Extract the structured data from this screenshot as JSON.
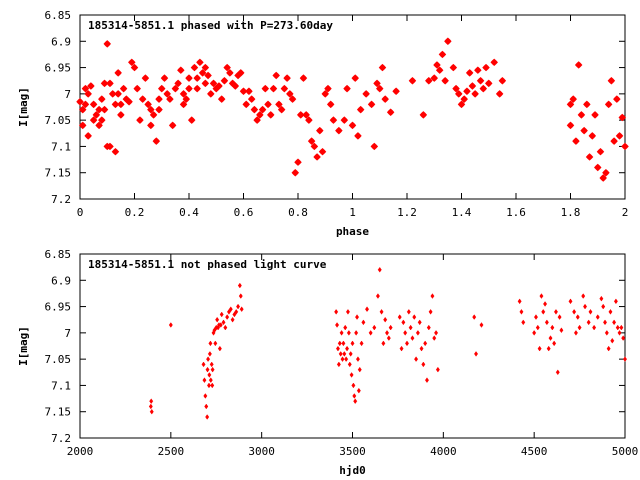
{
  "chart_data": [
    {
      "type": "scatter",
      "title": "185314-5851.1 phased with P=273.60day",
      "xlabel": "phase",
      "ylabel": "I[mag]",
      "xlim": [
        0,
        2
      ],
      "ylim": [
        7.2,
        6.85
      ],
      "y_inverted": true,
      "grid": false,
      "marker": "star",
      "color": "#ff0000",
      "xticks": [
        0,
        0.2,
        0.4,
        0.6,
        0.8,
        1,
        1.2,
        1.4,
        1.6,
        1.8,
        2
      ],
      "xtick_labels": [
        "0",
        "0.2",
        "0.4",
        "0.6",
        "0.8",
        "1",
        "1.2",
        "1.4",
        "1.6",
        "1.8",
        "2"
      ],
      "yticks": [
        6.85,
        6.9,
        6.95,
        7,
        7.05,
        7.1,
        7.15,
        7.2
      ],
      "ytick_labels": [
        "6.85",
        "6.9",
        "6.95",
        "7",
        "7.05",
        "7.1",
        "7.15",
        "7.2"
      ],
      "points": [
        [
          0.0,
          7.015
        ],
        [
          0.01,
          7.03
        ],
        [
          0.01,
          7.06
        ],
        [
          0.02,
          6.99
        ],
        [
          0.02,
          7.02
        ],
        [
          0.03,
          7.0
        ],
        [
          0.03,
          7.08
        ],
        [
          0.04,
          6.985
        ],
        [
          0.05,
          7.02
        ],
        [
          0.05,
          7.05
        ],
        [
          0.06,
          7.04
        ],
        [
          0.07,
          7.03
        ],
        [
          0.07,
          7.06
        ],
        [
          0.08,
          7.01
        ],
        [
          0.08,
          7.05
        ],
        [
          0.09,
          6.98
        ],
        [
          0.09,
          7.03
        ],
        [
          0.1,
          6.905
        ],
        [
          0.1,
          7.1
        ],
        [
          0.11,
          7.1
        ],
        [
          0.11,
          6.98
        ],
        [
          0.12,
          7.0
        ],
        [
          0.13,
          7.02
        ],
        [
          0.13,
          7.11
        ],
        [
          0.14,
          6.96
        ],
        [
          0.14,
          7.0
        ],
        [
          0.15,
          7.04
        ],
        [
          0.15,
          7.02
        ],
        [
          0.16,
          6.99
        ],
        [
          0.17,
          7.01
        ],
        [
          0.18,
          7.015
        ],
        [
          0.19,
          6.94
        ],
        [
          0.2,
          6.95
        ],
        [
          0.21,
          6.99
        ],
        [
          0.22,
          7.05
        ],
        [
          0.23,
          7.01
        ],
        [
          0.24,
          6.97
        ],
        [
          0.25,
          7.02
        ],
        [
          0.26,
          7.06
        ],
        [
          0.26,
          7.03
        ],
        [
          0.27,
          7.04
        ],
        [
          0.28,
          7.09
        ],
        [
          0.29,
          7.01
        ],
        [
          0.29,
          7.03
        ],
        [
          0.3,
          6.99
        ],
        [
          0.31,
          6.97
        ],
        [
          0.32,
          7.0
        ],
        [
          0.33,
          7.01
        ],
        [
          0.34,
          7.06
        ],
        [
          0.35,
          6.99
        ],
        [
          0.36,
          6.98
        ],
        [
          0.37,
          6.955
        ],
        [
          0.38,
          7.0
        ],
        [
          0.38,
          7.02
        ],
        [
          0.39,
          7.01
        ],
        [
          0.4,
          6.97
        ],
        [
          0.4,
          6.99
        ],
        [
          0.41,
          7.05
        ],
        [
          0.42,
          6.95
        ],
        [
          0.43,
          6.97
        ],
        [
          0.43,
          6.99
        ],
        [
          0.44,
          6.94
        ],
        [
          0.45,
          6.96
        ],
        [
          0.46,
          6.98
        ],
        [
          0.46,
          6.95
        ],
        [
          0.47,
          6.965
        ],
        [
          0.48,
          7.0
        ],
        [
          0.49,
          6.98
        ],
        [
          0.5,
          6.99
        ],
        [
          0.51,
          6.985
        ],
        [
          0.52,
          7.01
        ],
        [
          0.53,
          6.975
        ],
        [
          0.54,
          6.95
        ],
        [
          0.55,
          6.96
        ],
        [
          0.56,
          6.98
        ],
        [
          0.57,
          6.985
        ],
        [
          0.58,
          6.965
        ],
        [
          0.59,
          6.96
        ],
        [
          0.6,
          6.995
        ],
        [
          0.61,
          7.02
        ],
        [
          0.62,
          6.995
        ],
        [
          0.63,
          7.01
        ],
        [
          0.64,
          7.03
        ],
        [
          0.65,
          7.05
        ],
        [
          0.66,
          7.04
        ],
        [
          0.67,
          7.03
        ],
        [
          0.68,
          6.99
        ],
        [
          0.69,
          7.02
        ],
        [
          0.7,
          7.04
        ],
        [
          0.71,
          6.99
        ],
        [
          0.72,
          6.965
        ],
        [
          0.73,
          7.02
        ],
        [
          0.74,
          7.03
        ],
        [
          0.75,
          6.99
        ],
        [
          0.76,
          6.97
        ],
        [
          0.77,
          7.0
        ],
        [
          0.78,
          7.01
        ],
        [
          0.79,
          7.15
        ],
        [
          0.8,
          7.13
        ],
        [
          0.81,
          7.04
        ],
        [
          0.82,
          6.97
        ],
        [
          0.83,
          7.04
        ],
        [
          0.84,
          7.05
        ],
        [
          0.85,
          7.09
        ],
        [
          0.86,
          7.1
        ],
        [
          0.87,
          7.12
        ],
        [
          0.88,
          7.07
        ],
        [
          0.89,
          7.11
        ],
        [
          0.9,
          7.0
        ],
        [
          0.91,
          6.99
        ],
        [
          0.92,
          7.02
        ],
        [
          0.93,
          7.05
        ],
        [
          0.95,
          7.07
        ],
        [
          0.97,
          7.05
        ],
        [
          0.98,
          6.99
        ],
        [
          1.0,
          7.06
        ],
        [
          1.01,
          6.97
        ],
        [
          1.02,
          7.08
        ],
        [
          1.03,
          7.03
        ],
        [
          1.05,
          7.0
        ],
        [
          1.07,
          7.02
        ],
        [
          1.08,
          7.1
        ],
        [
          1.09,
          6.98
        ],
        [
          1.1,
          6.99
        ],
        [
          1.11,
          6.95
        ],
        [
          1.12,
          7.01
        ],
        [
          1.14,
          7.035
        ],
        [
          1.16,
          6.995
        ],
        [
          1.22,
          6.975
        ],
        [
          1.26,
          7.04
        ],
        [
          1.28,
          6.975
        ],
        [
          1.3,
          6.97
        ],
        [
          1.31,
          6.945
        ],
        [
          1.32,
          6.955
        ],
        [
          1.33,
          6.925
        ],
        [
          1.34,
          6.975
        ],
        [
          1.35,
          6.9
        ],
        [
          1.37,
          6.95
        ],
        [
          1.38,
          6.99
        ],
        [
          1.39,
          7.0
        ],
        [
          1.4,
          7.02
        ],
        [
          1.41,
          7.01
        ],
        [
          1.42,
          6.995
        ],
        [
          1.43,
          6.96
        ],
        [
          1.44,
          6.985
        ],
        [
          1.45,
          7.0
        ],
        [
          1.46,
          6.955
        ],
        [
          1.47,
          6.975
        ],
        [
          1.48,
          6.99
        ],
        [
          1.49,
          6.95
        ],
        [
          1.5,
          6.98
        ],
        [
          1.52,
          6.94
        ],
        [
          1.54,
          7.0
        ],
        [
          1.55,
          6.975
        ],
        [
          1.8,
          7.06
        ],
        [
          1.8,
          7.02
        ],
        [
          1.81,
          7.01
        ],
        [
          1.82,
          7.09
        ],
        [
          1.83,
          6.945
        ],
        [
          1.84,
          7.04
        ],
        [
          1.85,
          7.07
        ],
        [
          1.86,
          7.02
        ],
        [
          1.88,
          7.08
        ],
        [
          1.9,
          7.14
        ],
        [
          1.91,
          7.11
        ],
        [
          1.92,
          7.16
        ],
        [
          1.93,
          7.15
        ],
        [
          1.94,
          7.02
        ],
        [
          1.95,
          6.975
        ],
        [
          1.96,
          7.09
        ],
        [
          1.97,
          7.01
        ],
        [
          1.98,
          7.08
        ],
        [
          1.99,
          7.045
        ],
        [
          2.0,
          7.1
        ],
        [
          1.87,
          7.12
        ],
        [
          1.89,
          7.04
        ]
      ]
    },
    {
      "type": "scatter",
      "title": "185314-5851.1 not phased light curve",
      "xlabel": "hjd0",
      "ylabel": "I[mag]",
      "xlim": [
        2000,
        5000
      ],
      "ylim": [
        7.2,
        6.85
      ],
      "y_inverted": true,
      "grid": false,
      "marker": "diamond",
      "color": "#ff0000",
      "xticks": [
        2000,
        2500,
        3000,
        3500,
        4000,
        4500,
        5000
      ],
      "xtick_labels": [
        "2000",
        "2500",
        "3000",
        "3500",
        "4000",
        "4500",
        "5000"
      ],
      "yticks": [
        6.85,
        6.9,
        6.95,
        7,
        7.05,
        7.1,
        7.15,
        7.2
      ],
      "ytick_labels": [
        "6.85",
        "6.9",
        "6.95",
        "7",
        "7.05",
        "7.1",
        "7.15",
        "7.2"
      ],
      "points": [
        [
          2390,
          7.14
        ],
        [
          2395,
          7.15
        ],
        [
          2392,
          7.13
        ],
        [
          2500,
          6.985
        ],
        [
          2680,
          7.06
        ],
        [
          2685,
          7.09
        ],
        [
          2690,
          7.12
        ],
        [
          2695,
          7.14
        ],
        [
          2700,
          7.16
        ],
        [
          2702,
          7.07
        ],
        [
          2705,
          7.05
        ],
        [
          2710,
          7.1
        ],
        [
          2712,
          7.08
        ],
        [
          2715,
          7.04
        ],
        [
          2718,
          7.02
        ],
        [
          2720,
          7.09
        ],
        [
          2725,
          7.06
        ],
        [
          2728,
          7.1
        ],
        [
          2730,
          7.07
        ],
        [
          2735,
          7.0
        ],
        [
          2740,
          6.995
        ],
        [
          2745,
          7.02
        ],
        [
          2750,
          6.99
        ],
        [
          2755,
          6.975
        ],
        [
          2760,
          6.99
        ],
        [
          2765,
          6.985
        ],
        [
          2770,
          7.03
        ],
        [
          2775,
          6.985
        ],
        [
          2780,
          6.965
        ],
        [
          2790,
          6.98
        ],
        [
          2800,
          6.99
        ],
        [
          2810,
          6.97
        ],
        [
          2820,
          6.96
        ],
        [
          2830,
          6.955
        ],
        [
          2840,
          6.975
        ],
        [
          2850,
          6.965
        ],
        [
          2860,
          6.96
        ],
        [
          2870,
          6.95
        ],
        [
          2880,
          6.91
        ],
        [
          2885,
          6.93
        ],
        [
          2890,
          6.955
        ],
        [
          3410,
          6.96
        ],
        [
          3415,
          6.985
        ],
        [
          3420,
          7.03
        ],
        [
          3425,
          7.06
        ],
        [
          3430,
          7.02
        ],
        [
          3435,
          7.04
        ],
        [
          3440,
          7.0
        ],
        [
          3445,
          7.05
        ],
        [
          3450,
          7.02
        ],
        [
          3455,
          7.04
        ],
        [
          3460,
          6.99
        ],
        [
          3465,
          7.05
        ],
        [
          3470,
          7.03
        ],
        [
          3475,
          6.96
        ],
        [
          3480,
          7.0
        ],
        [
          3485,
          7.06
        ],
        [
          3490,
          7.04
        ],
        [
          3495,
          7.08
        ],
        [
          3500,
          7.02
        ],
        [
          3505,
          7.1
        ],
        [
          3510,
          7.12
        ],
        [
          3515,
          7.13
        ],
        [
          3520,
          7.0
        ],
        [
          3525,
          6.97
        ],
        [
          3530,
          7.05
        ],
        [
          3535,
          7.11
        ],
        [
          3540,
          7.07
        ],
        [
          3550,
          7.02
        ],
        [
          3560,
          6.98
        ],
        [
          3580,
          6.955
        ],
        [
          3600,
          7.0
        ],
        [
          3620,
          6.99
        ],
        [
          3640,
          6.93
        ],
        [
          3650,
          6.88
        ],
        [
          3660,
          6.96
        ],
        [
          3670,
          7.02
        ],
        [
          3680,
          6.975
        ],
        [
          3690,
          7.0
        ],
        [
          3700,
          7.01
        ],
        [
          3710,
          6.99
        ],
        [
          3760,
          6.97
        ],
        [
          3770,
          7.03
        ],
        [
          3780,
          6.98
        ],
        [
          3790,
          7.0
        ],
        [
          3800,
          7.02
        ],
        [
          3810,
          6.96
        ],
        [
          3820,
          6.99
        ],
        [
          3830,
          7.01
        ],
        [
          3840,
          6.97
        ],
        [
          3850,
          7.05
        ],
        [
          3860,
          7.0
        ],
        [
          3870,
          6.98
        ],
        [
          3880,
          7.03
        ],
        [
          3890,
          7.06
        ],
        [
          3900,
          7.02
        ],
        [
          3910,
          7.09
        ],
        [
          3920,
          6.99
        ],
        [
          3930,
          6.96
        ],
        [
          3940,
          6.93
        ],
        [
          3950,
          7.01
        ],
        [
          3960,
          7.0
        ],
        [
          3970,
          7.07
        ],
        [
          4170,
          6.97
        ],
        [
          4180,
          7.04
        ],
        [
          4210,
          6.985
        ],
        [
          4420,
          6.94
        ],
        [
          4430,
          6.96
        ],
        [
          4440,
          6.98
        ],
        [
          4500,
          7.0
        ],
        [
          4510,
          6.97
        ],
        [
          4520,
          6.99
        ],
        [
          4530,
          7.03
        ],
        [
          4540,
          6.93
        ],
        [
          4550,
          6.96
        ],
        [
          4560,
          6.945
        ],
        [
          4570,
          6.98
        ],
        [
          4580,
          7.03
        ],
        [
          4590,
          7.01
        ],
        [
          4600,
          6.99
        ],
        [
          4610,
          7.02
        ],
        [
          4620,
          6.96
        ],
        [
          4630,
          7.075
        ],
        [
          4640,
          6.97
        ],
        [
          4650,
          6.995
        ],
        [
          4700,
          6.94
        ],
        [
          4720,
          6.96
        ],
        [
          4730,
          7.0
        ],
        [
          4740,
          6.97
        ],
        [
          4750,
          6.99
        ],
        [
          4770,
          6.93
        ],
        [
          4780,
          6.95
        ],
        [
          4800,
          6.98
        ],
        [
          4810,
          6.96
        ],
        [
          4830,
          6.99
        ],
        [
          4850,
          6.97
        ],
        [
          4870,
          6.935
        ],
        [
          4880,
          6.95
        ],
        [
          4890,
          6.98
        ],
        [
          4900,
          7.0
        ],
        [
          4910,
          7.03
        ],
        [
          4920,
          6.96
        ],
        [
          4930,
          7.015
        ],
        [
          4940,
          6.98
        ],
        [
          4950,
          6.94
        ],
        [
          4960,
          6.99
        ],
        [
          4970,
          7.0
        ],
        [
          4980,
          6.99
        ],
        [
          4990,
          7.01
        ],
        [
          5000,
          7.05
        ]
      ]
    }
  ]
}
